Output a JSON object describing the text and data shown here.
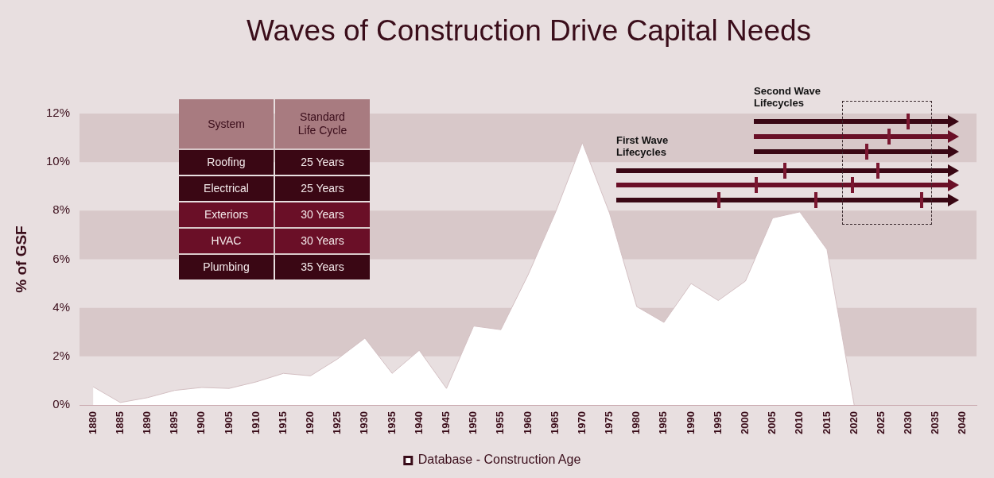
{
  "chart_data": {
    "type": "area",
    "title": "Waves of Construction Drive Capital Needs",
    "ylabel": "% of GSF",
    "categories": [
      "1880",
      "1885",
      "1890",
      "1895",
      "1900",
      "1905",
      "1910",
      "1915",
      "1920",
      "1925",
      "1930",
      "1935",
      "1940",
      "1945",
      "1950",
      "1955",
      "1960",
      "1965",
      "1970",
      "1975",
      "1980",
      "1985",
      "1990",
      "1995",
      "2000",
      "2005",
      "2010",
      "2015",
      "2020",
      "2025",
      "2030",
      "2035",
      "2040"
    ],
    "series": [
      {
        "name": "Database - Construction Age",
        "color": "#ffffff",
        "values": [
          0.75,
          0.1,
          0.3,
          0.6,
          0.72,
          0.68,
          0.95,
          1.3,
          1.2,
          1.9,
          2.75,
          1.3,
          2.25,
          0.68,
          3.25,
          3.1,
          5.35,
          7.9,
          10.8,
          7.9,
          4.05,
          3.4,
          5.0,
          4.3,
          5.1,
          7.7,
          7.95,
          6.4,
          0,
          null,
          null,
          null,
          null
        ]
      }
    ],
    "ylim": [
      0,
      12
    ],
    "yticks": [
      {
        "value": 0,
        "label": "0%"
      },
      {
        "value": 2,
        "label": "2%"
      },
      {
        "value": 4,
        "label": "4%"
      },
      {
        "value": 6,
        "label": "6%"
      },
      {
        "value": 8,
        "label": "8%"
      },
      {
        "value": 10,
        "label": "10%"
      },
      {
        "value": 12,
        "label": "12%"
      }
    ],
    "bands": [
      {
        "axis": "y",
        "from": 2,
        "to": 4,
        "color": "#d8c8c9"
      },
      {
        "axis": "y",
        "from": 6,
        "to": 8,
        "color": "#d8c8c9"
      },
      {
        "axis": "y",
        "from": 10,
        "to": 12,
        "color": "#d8c8c9"
      }
    ],
    "grid": false,
    "legend": "bottom",
    "marker": "none",
    "annotations": [
      "First Wave Lifecycles",
      "Second Wave Lifecycles",
      "System",
      "Standard Life Cycle",
      "Roofing",
      "25 Years",
      "Electrical",
      "25 Years",
      "Exteriors",
      "30 Years",
      "HVAC",
      "30 Years",
      "Plumbing",
      "35 Years"
    ]
  }
}
